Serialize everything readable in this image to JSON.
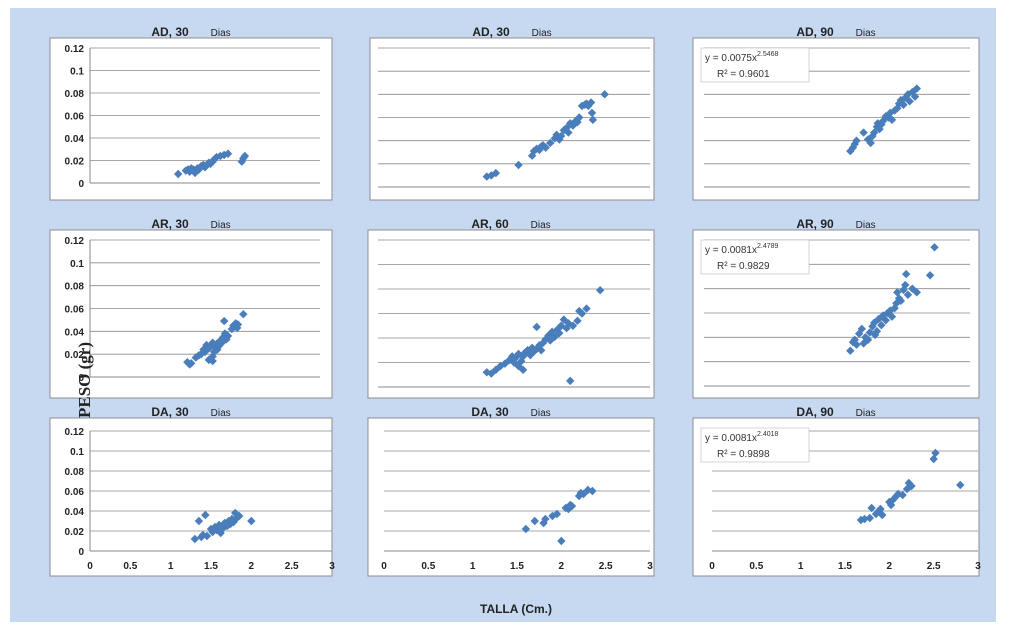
{
  "figure": {
    "xlabel": "TALLA (Cm.)",
    "ylabel": "PESO (gr)",
    "colors": {
      "background": "#c6d9f1",
      "marker": "#4a7ebb",
      "panel": "#ffffff",
      "grid": "#8a8a8a"
    }
  },
  "chart_data": [
    {
      "type": "scatter",
      "title": "AD, 30",
      "title_suffix": "Dias",
      "xlim": [
        0,
        3
      ],
      "ylim": [
        0,
        0.12
      ],
      "x_ticks": [],
      "y_ticks": [
        "0.12",
        "0.1",
        "0.08",
        "0.06",
        "0.04",
        "0.02",
        "0"
      ],
      "grid": true,
      "equation": null,
      "r2": null,
      "points": [
        [
          1.15,
          0.008
        ],
        [
          1.25,
          0.011
        ],
        [
          1.28,
          0.012
        ],
        [
          1.3,
          0.01
        ],
        [
          1.32,
          0.013
        ],
        [
          1.35,
          0.012
        ],
        [
          1.37,
          0.009
        ],
        [
          1.38,
          0.011
        ],
        [
          1.4,
          0.013
        ],
        [
          1.42,
          0.012
        ],
        [
          1.45,
          0.015
        ],
        [
          1.48,
          0.016
        ],
        [
          1.5,
          0.014
        ],
        [
          1.52,
          0.016
        ],
        [
          1.55,
          0.018
        ],
        [
          1.57,
          0.017
        ],
        [
          1.6,
          0.019
        ],
        [
          1.62,
          0.021
        ],
        [
          1.65,
          0.023
        ],
        [
          1.7,
          0.024
        ],
        [
          1.75,
          0.025
        ],
        [
          1.8,
          0.026
        ],
        [
          1.98,
          0.019
        ],
        [
          2.0,
          0.022
        ],
        [
          2.02,
          0.024
        ]
      ]
    },
    {
      "type": "scatter",
      "title": "AD, 30",
      "title_suffix": "Dias",
      "xlim": [
        0,
        3
      ],
      "ylim": [
        0,
        0.12
      ],
      "x_ticks": [],
      "y_ticks": [],
      "grid": true,
      "equation": null,
      "r2": null,
      "points": [
        [
          1.2,
          0.009
        ],
        [
          1.25,
          0.01
        ],
        [
          1.3,
          0.012
        ],
        [
          1.55,
          0.019
        ],
        [
          1.7,
          0.027
        ],
        [
          1.72,
          0.031
        ],
        [
          1.75,
          0.033
        ],
        [
          1.78,
          0.032
        ],
        [
          1.8,
          0.035
        ],
        [
          1.82,
          0.036
        ],
        [
          1.85,
          0.034
        ],
        [
          1.9,
          0.038
        ],
        [
          1.95,
          0.042
        ],
        [
          1.97,
          0.045
        ],
        [
          2.0,
          0.041
        ],
        [
          2.02,
          0.044
        ],
        [
          2.05,
          0.049
        ],
        [
          2.08,
          0.051
        ],
        [
          2.1,
          0.047
        ],
        [
          2.12,
          0.055
        ],
        [
          2.15,
          0.053
        ],
        [
          2.18,
          0.057
        ],
        [
          2.2,
          0.056
        ],
        [
          2.22,
          0.06
        ],
        [
          2.25,
          0.07
        ],
        [
          2.28,
          0.071
        ],
        [
          2.3,
          0.072
        ],
        [
          2.32,
          0.07
        ],
        [
          2.35,
          0.073
        ],
        [
          2.36,
          0.064
        ],
        [
          2.37,
          0.058
        ],
        [
          2.5,
          0.08
        ]
      ]
    },
    {
      "type": "scatter",
      "title": "AD, 90",
      "title_suffix": "Dias",
      "xlim": [
        0,
        3
      ],
      "ylim": [
        0,
        0.12
      ],
      "x_ticks": [],
      "y_ticks": [],
      "grid": true,
      "equation": {
        "prefix": "y = 0.0075x",
        "exponent": "2.5468"
      },
      "r2": "R² = 0.9601",
      "points": [
        [
          1.65,
          0.031
        ],
        [
          1.68,
          0.034
        ],
        [
          1.7,
          0.037
        ],
        [
          1.72,
          0.04
        ],
        [
          1.8,
          0.047
        ],
        [
          1.85,
          0.041
        ],
        [
          1.88,
          0.038
        ],
        [
          1.9,
          0.044
        ],
        [
          1.92,
          0.047
        ],
        [
          1.95,
          0.052
        ],
        [
          1.96,
          0.055
        ],
        [
          1.98,
          0.05
        ],
        [
          2.0,
          0.054
        ],
        [
          2.02,
          0.057
        ],
        [
          2.05,
          0.061
        ],
        [
          2.08,
          0.06
        ],
        [
          2.1,
          0.064
        ],
        [
          2.12,
          0.058
        ],
        [
          2.15,
          0.066
        ],
        [
          2.18,
          0.068
        ],
        [
          2.2,
          0.072
        ],
        [
          2.22,
          0.075
        ],
        [
          2.25,
          0.071
        ],
        [
          2.27,
          0.077
        ],
        [
          2.3,
          0.08
        ],
        [
          2.32,
          0.074
        ],
        [
          2.35,
          0.082
        ],
        [
          2.38,
          0.078
        ],
        [
          2.4,
          0.085
        ]
      ]
    },
    {
      "type": "scatter",
      "title": "AR, 30",
      "title_suffix": "Dias",
      "xlim": [
        0,
        3
      ],
      "ylim": [
        0,
        0.12
      ],
      "x_ticks": [],
      "y_ticks": [
        "0.12",
        "0.1",
        "0.08",
        "0.06",
        "0.04",
        "0.02",
        "0"
      ],
      "grid": true,
      "equation": null,
      "r2": null,
      "points": [
        [
          1.27,
          0.013
        ],
        [
          1.3,
          0.011
        ],
        [
          1.32,
          0.012
        ],
        [
          1.38,
          0.017
        ],
        [
          1.42,
          0.019
        ],
        [
          1.45,
          0.02
        ],
        [
          1.48,
          0.024
        ],
        [
          1.5,
          0.022
        ],
        [
          1.52,
          0.028
        ],
        [
          1.55,
          0.025
        ],
        [
          1.57,
          0.027
        ],
        [
          1.6,
          0.018
        ],
        [
          1.6,
          0.03
        ],
        [
          1.62,
          0.022
        ],
        [
          1.63,
          0.026
        ],
        [
          1.65,
          0.029
        ],
        [
          1.66,
          0.024
        ],
        [
          1.68,
          0.027
        ],
        [
          1.7,
          0.032
        ],
        [
          1.72,
          0.03
        ],
        [
          1.74,
          0.035
        ],
        [
          1.75,
          0.049
        ],
        [
          1.76,
          0.038
        ],
        [
          1.78,
          0.033
        ],
        [
          1.8,
          0.036
        ],
        [
          1.85,
          0.042
        ],
        [
          1.87,
          0.045
        ],
        [
          1.9,
          0.047
        ],
        [
          1.92,
          0.043
        ],
        [
          1.93,
          0.046
        ],
        [
          2.0,
          0.055
        ],
        [
          1.6,
          0.014
        ],
        [
          1.55,
          0.015
        ]
      ]
    },
    {
      "type": "scatter",
      "title": "AR, 60",
      "title_suffix": "Dias",
      "xlim": [
        0,
        3
      ],
      "ylim": [
        0,
        0.12
      ],
      "x_ticks": [],
      "y_ticks": [],
      "grid": true,
      "equation": null,
      "r2": null,
      "points": [
        [
          1.2,
          0.012
        ],
        [
          1.25,
          0.011
        ],
        [
          1.3,
          0.014
        ],
        [
          1.35,
          0.017
        ],
        [
          1.4,
          0.019
        ],
        [
          1.45,
          0.022
        ],
        [
          1.48,
          0.025
        ],
        [
          1.5,
          0.02
        ],
        [
          1.52,
          0.024
        ],
        [
          1.55,
          0.027
        ],
        [
          1.58,
          0.021
        ],
        [
          1.6,
          0.025
        ],
        [
          1.62,
          0.028
        ],
        [
          1.65,
          0.03
        ],
        [
          1.68,
          0.026
        ],
        [
          1.7,
          0.032
        ],
        [
          1.72,
          0.029
        ],
        [
          1.75,
          0.031
        ],
        [
          1.75,
          0.049
        ],
        [
          1.78,
          0.034
        ],
        [
          1.8,
          0.03
        ],
        [
          1.82,
          0.036
        ],
        [
          1.85,
          0.039
        ],
        [
          1.88,
          0.042
        ],
        [
          1.9,
          0.038
        ],
        [
          1.92,
          0.045
        ],
        [
          1.95,
          0.041
        ],
        [
          1.98,
          0.047
        ],
        [
          2.0,
          0.044
        ],
        [
          2.02,
          0.05
        ],
        [
          2.05,
          0.055
        ],
        [
          2.08,
          0.048
        ],
        [
          2.1,
          0.052
        ],
        [
          2.12,
          0.005
        ],
        [
          2.15,
          0.05
        ],
        [
          2.2,
          0.054
        ],
        [
          2.22,
          0.062
        ],
        [
          2.25,
          0.06
        ],
        [
          2.3,
          0.064
        ],
        [
          2.45,
          0.079
        ],
        [
          1.6,
          0.014
        ],
        [
          1.55,
          0.017
        ]
      ]
    },
    {
      "type": "scatter",
      "title": "AR, 90",
      "title_suffix": "Dias",
      "xlim": [
        0,
        3
      ],
      "ylim": [
        0,
        0.12
      ],
      "x_ticks": [],
      "y_ticks": [],
      "grid": true,
      "equation": {
        "prefix": "y = 0.0081x",
        "exponent": "2.4789"
      },
      "r2": "R² = 0.9829",
      "points": [
        [
          1.65,
          0.029
        ],
        [
          1.68,
          0.036
        ],
        [
          1.7,
          0.038
        ],
        [
          1.72,
          0.034
        ],
        [
          1.75,
          0.043
        ],
        [
          1.78,
          0.047
        ],
        [
          1.8,
          0.035
        ],
        [
          1.82,
          0.04
        ],
        [
          1.85,
          0.038
        ],
        [
          1.87,
          0.044
        ],
        [
          1.9,
          0.049
        ],
        [
          1.92,
          0.052
        ],
        [
          1.93,
          0.042
        ],
        [
          1.95,
          0.045
        ],
        [
          1.97,
          0.055
        ],
        [
          2.0,
          0.05
        ],
        [
          2.02,
          0.058
        ],
        [
          2.05,
          0.054
        ],
        [
          2.07,
          0.06
        ],
        [
          2.1,
          0.062
        ],
        [
          2.12,
          0.057
        ],
        [
          2.15,
          0.064
        ],
        [
          2.17,
          0.068
        ],
        [
          2.18,
          0.077
        ],
        [
          2.2,
          0.072
        ],
        [
          2.22,
          0.07
        ],
        [
          2.25,
          0.079
        ],
        [
          2.27,
          0.083
        ],
        [
          2.28,
          0.092
        ],
        [
          2.3,
          0.075
        ],
        [
          2.35,
          0.08
        ],
        [
          2.4,
          0.077
        ],
        [
          2.55,
          0.091
        ],
        [
          2.6,
          0.114
        ]
      ]
    },
    {
      "type": "scatter",
      "title": "DA, 30",
      "title_suffix": "Dias",
      "xlim": [
        0,
        3
      ],
      "ylim": [
        0,
        0.12
      ],
      "x_ticks": [
        "0",
        "0.5",
        "1",
        "1.5",
        "2",
        "2.5",
        "3"
      ],
      "y_ticks": [
        "0.12",
        "0.1",
        "0.08",
        "0.06",
        "0.04",
        "0.02",
        "0"
      ],
      "grid": true,
      "equation": null,
      "r2": null,
      "points": [
        [
          1.3,
          0.012
        ],
        [
          1.35,
          0.03
        ],
        [
          1.38,
          0.014
        ],
        [
          1.4,
          0.016
        ],
        [
          1.43,
          0.036
        ],
        [
          1.45,
          0.015
        ],
        [
          1.5,
          0.022
        ],
        [
          1.52,
          0.019
        ],
        [
          1.55,
          0.024
        ],
        [
          1.57,
          0.021
        ],
        [
          1.6,
          0.026
        ],
        [
          1.62,
          0.018
        ],
        [
          1.65,
          0.023
        ],
        [
          1.67,
          0.028
        ],
        [
          1.7,
          0.025
        ],
        [
          1.72,
          0.03
        ],
        [
          1.74,
          0.027
        ],
        [
          1.76,
          0.032
        ],
        [
          1.78,
          0.029
        ],
        [
          1.8,
          0.038
        ],
        [
          1.82,
          0.033
        ],
        [
          1.85,
          0.035
        ],
        [
          2.0,
          0.03
        ]
      ]
    },
    {
      "type": "scatter",
      "title": "DA, 30",
      "title_suffix": "Dias",
      "xlim": [
        0,
        3
      ],
      "ylim": [
        0,
        0.12
      ],
      "x_ticks": [
        "0",
        "0.5",
        "1",
        "1.5",
        "2",
        "2.5",
        "3"
      ],
      "y_ticks": [],
      "grid": true,
      "equation": null,
      "r2": null,
      "points": [
        [
          1.6,
          0.022
        ],
        [
          1.7,
          0.03
        ],
        [
          1.8,
          0.028
        ],
        [
          1.82,
          0.032
        ],
        [
          1.9,
          0.035
        ],
        [
          1.95,
          0.037
        ],
        [
          2.0,
          0.01
        ],
        [
          2.05,
          0.043
        ],
        [
          2.08,
          0.042
        ],
        [
          2.1,
          0.046
        ],
        [
          2.12,
          0.045
        ],
        [
          2.2,
          0.055
        ],
        [
          2.22,
          0.058
        ],
        [
          2.25,
          0.057
        ],
        [
          2.3,
          0.061
        ],
        [
          2.35,
          0.06
        ]
      ]
    },
    {
      "type": "scatter",
      "title": "DA, 90",
      "title_suffix": "Dias",
      "xlim": [
        0,
        3
      ],
      "ylim": [
        0,
        0.12
      ],
      "x_ticks": [
        "0",
        "0.5",
        "1",
        "1.5",
        "2",
        "2.5",
        "3"
      ],
      "y_ticks": [],
      "grid": true,
      "equation": {
        "prefix": "y = 0.0081x",
        "exponent": "2.4018"
      },
      "r2": "R² = 0.9898",
      "points": [
        [
          1.68,
          0.031
        ],
        [
          1.72,
          0.032
        ],
        [
          1.78,
          0.033
        ],
        [
          1.8,
          0.043
        ],
        [
          1.85,
          0.037
        ],
        [
          1.88,
          0.04
        ],
        [
          1.9,
          0.042
        ],
        [
          1.92,
          0.036
        ],
        [
          2.0,
          0.049
        ],
        [
          2.02,
          0.046
        ],
        [
          2.05,
          0.052
        ],
        [
          2.08,
          0.055
        ],
        [
          2.1,
          0.057
        ],
        [
          2.15,
          0.056
        ],
        [
          2.2,
          0.062
        ],
        [
          2.22,
          0.068
        ],
        [
          2.25,
          0.065
        ],
        [
          2.5,
          0.092
        ],
        [
          2.52,
          0.098
        ],
        [
          2.8,
          0.066
        ]
      ]
    }
  ]
}
